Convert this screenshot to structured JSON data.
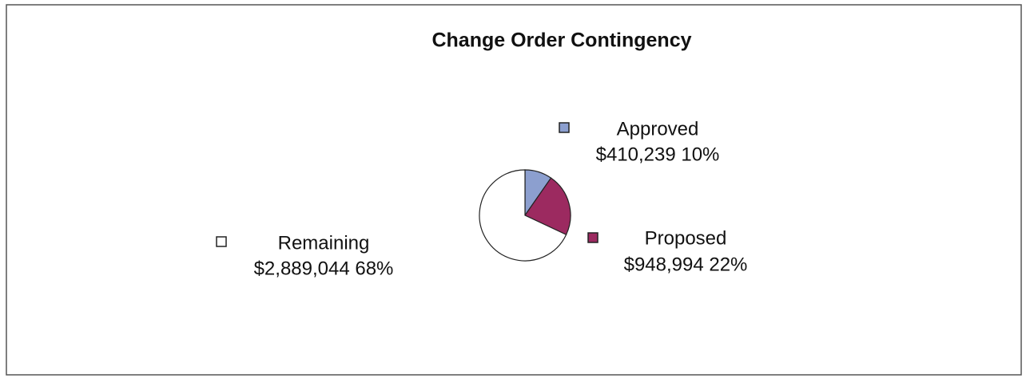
{
  "chart_data": {
    "type": "pie",
    "title": "Change Order Contingency",
    "categories": [
      "Approved",
      "Proposed",
      "Remaining"
    ],
    "values": [
      410239,
      948994,
      2889044
    ],
    "value_labels": [
      "$410,239 10%",
      "$948,994 22%",
      "$2,889,044 68%"
    ],
    "colors": [
      "#8c9fcf",
      "#9c2a60",
      "#ffffff"
    ]
  }
}
